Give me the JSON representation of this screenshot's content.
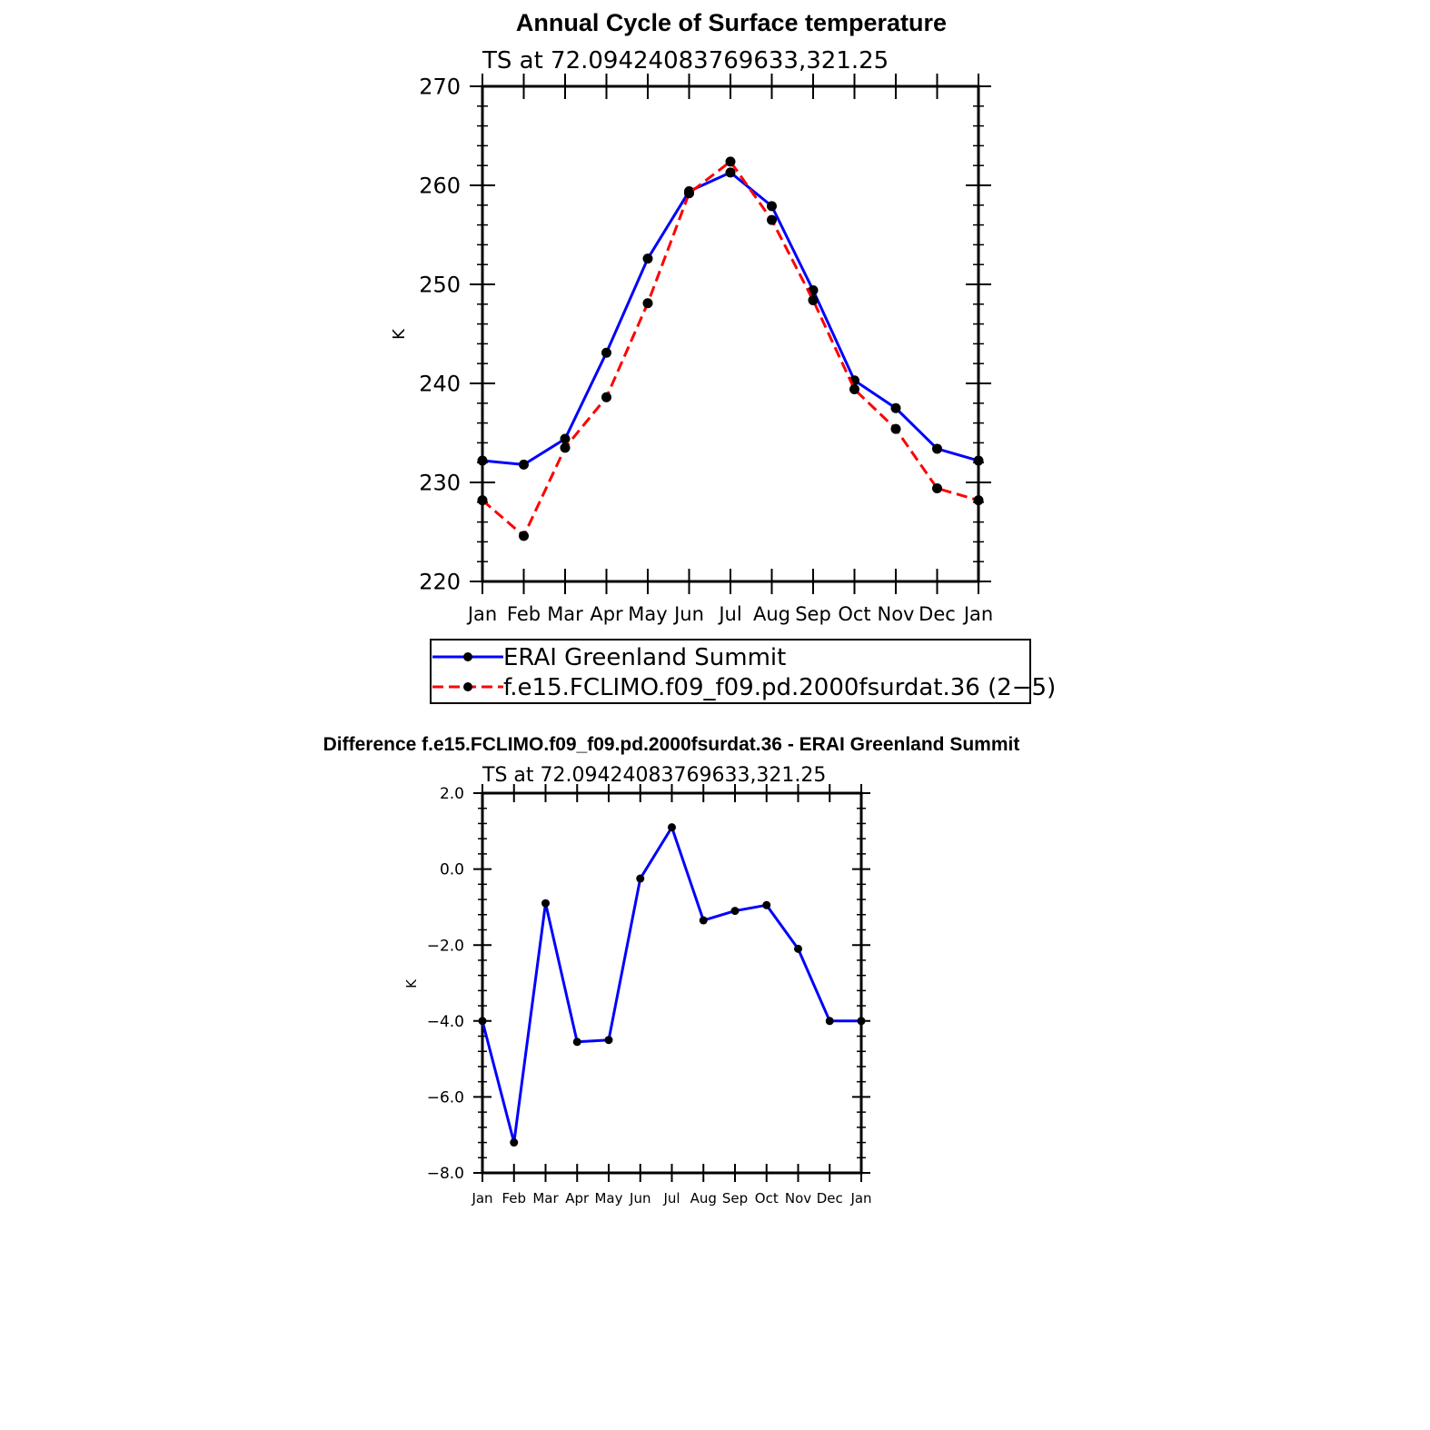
{
  "chart_data": [
    {
      "type": "line",
      "title": "Annual Cycle of Surface temperature",
      "subtitle": "TS at 72.09424083769633,321.25",
      "xlabel": "",
      "ylabel": "K",
      "categories": [
        "Jan",
        "Feb",
        "Mar",
        "Apr",
        "May",
        "Jun",
        "Jul",
        "Aug",
        "Sep",
        "Oct",
        "Nov",
        "Dec",
        "Jan"
      ],
      "ylim": [
        220,
        270
      ],
      "yticks": [
        "220",
        "230",
        "240",
        "250",
        "260",
        "270"
      ],
      "series": [
        {
          "name": "ERAI Greenland Summit",
          "color": "#0000ff",
          "dash": "solid",
          "values": [
            232.2,
            231.8,
            234.4,
            243.1,
            252.6,
            259.4,
            261.3,
            257.9,
            249.4,
            240.3,
            237.5,
            233.4,
            232.2
          ]
        },
        {
          "name": "f.e15.FCLIMO.f09_f09.pd.2000fsurdat.36 (2−5)",
          "color": "#ff0000",
          "dash": "dashed",
          "values": [
            228.2,
            224.6,
            233.5,
            238.6,
            248.1,
            259.2,
            262.4,
            256.5,
            248.4,
            239.4,
            235.4,
            229.4,
            228.2
          ]
        }
      ],
      "legend": "bottom",
      "grid": false
    },
    {
      "type": "line",
      "title": "Difference f.e15.FCLIMO.f09_f09.pd.2000fsurdat.36 - ERAI Greenland Summit",
      "subtitle": "TS at 72.09424083769633,321.25",
      "xlabel": "",
      "ylabel": "K",
      "categories": [
        "Jan",
        "Feb",
        "Mar",
        "Apr",
        "May",
        "Jun",
        "Jul",
        "Aug",
        "Sep",
        "Oct",
        "Nov",
        "Dec",
        "Jan"
      ],
      "ylim": [
        -8.0,
        2.0
      ],
      "yticks": [
        "−8.0",
        "−6.0",
        "−4.0",
        "−2.0",
        "0.0",
        "2.0"
      ],
      "series": [
        {
          "color": "#0000ff",
          "dash": "solid",
          "values": [
            -4.0,
            -7.2,
            -0.9,
            -4.55,
            -4.5,
            -0.25,
            1.1,
            -1.35,
            -1.1,
            -0.95,
            -2.1,
            -4.0,
            -4.0
          ]
        }
      ],
      "grid": false
    }
  ]
}
